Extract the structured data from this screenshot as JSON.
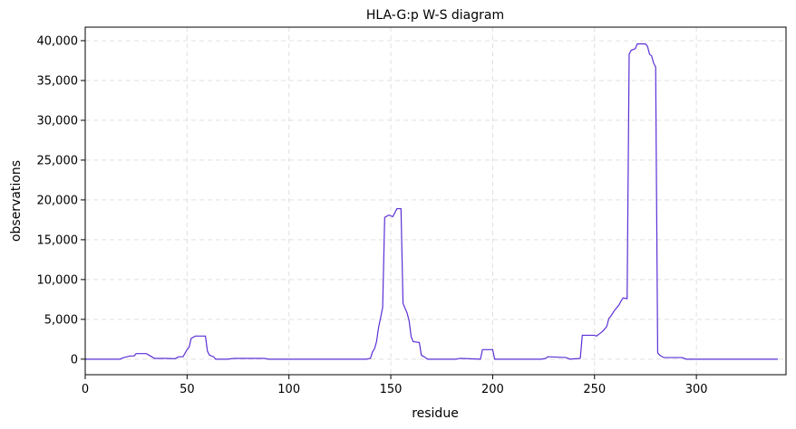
{
  "chart_data": {
    "type": "line",
    "title": "HLA-G:p W-S diagram",
    "xlabel": "residue",
    "ylabel": "observations",
    "x": [
      0,
      17,
      19,
      22,
      24,
      25,
      30,
      32,
      34,
      40,
      44,
      46,
      48,
      50,
      51,
      52,
      54,
      59,
      60,
      61,
      63,
      64,
      70,
      73,
      88,
      90,
      138,
      140,
      141,
      142,
      143,
      144,
      145,
      146,
      147,
      149,
      151,
      153,
      155,
      156,
      158,
      159,
      160,
      161,
      164,
      165,
      167,
      168,
      182,
      184,
      194,
      195,
      200,
      201,
      224,
      226,
      227,
      236,
      238,
      243,
      244,
      250,
      251,
      252,
      254,
      256,
      257,
      258,
      260,
      262,
      263,
      264,
      266,
      267,
      268,
      270,
      271,
      275,
      276,
      277,
      278,
      279,
      280,
      281,
      282,
      284,
      293,
      295,
      340
    ],
    "series": [
      {
        "name": "observations",
        "color": "#5b2fd6",
        "values": [
          0,
          0,
          200,
          400,
          400,
          700,
          700,
          400,
          100,
          100,
          50,
          300,
          300,
          1200,
          1500,
          2600,
          2900,
          2900,
          1000,
          500,
          300,
          0,
          0,
          100,
          100,
          0,
          0,
          100,
          900,
          1300,
          2200,
          4000,
          5200,
          6500,
          17800,
          18100,
          17900,
          18900,
          18900,
          7000,
          5800,
          4800,
          2800,
          2200,
          2100,
          500,
          200,
          0,
          0,
          100,
          0,
          1200,
          1200,
          0,
          0,
          100,
          300,
          200,
          0,
          100,
          3000,
          3000,
          2900,
          3100,
          3500,
          4100,
          5100,
          5400,
          6200,
          6800,
          7300,
          7700,
          7600,
          38300,
          38800,
          39000,
          39600,
          39600,
          39300,
          38300,
          38100,
          37200,
          36700,
          800,
          500,
          200,
          200,
          0,
          0
        ]
      }
    ],
    "xlim": [
      0,
      344
    ],
    "ylim": [
      -1950,
      41700
    ],
    "xticks": [
      0,
      50,
      100,
      150,
      200,
      250,
      300
    ],
    "yticks": [
      0,
      {
        "value": 5000,
        "label": "5,000"
      },
      {
        "value": 10000,
        "label": "10,000"
      },
      {
        "value": 15000,
        "label": "15,000"
      },
      {
        "value": 20000,
        "label": "20,000"
      },
      {
        "value": 25000,
        "label": "25,000"
      },
      {
        "value": 30000,
        "label": "30,000"
      },
      {
        "value": 35000,
        "label": "35,000"
      },
      {
        "value": 40000,
        "label": "40,000"
      }
    ],
    "grid": true
  }
}
